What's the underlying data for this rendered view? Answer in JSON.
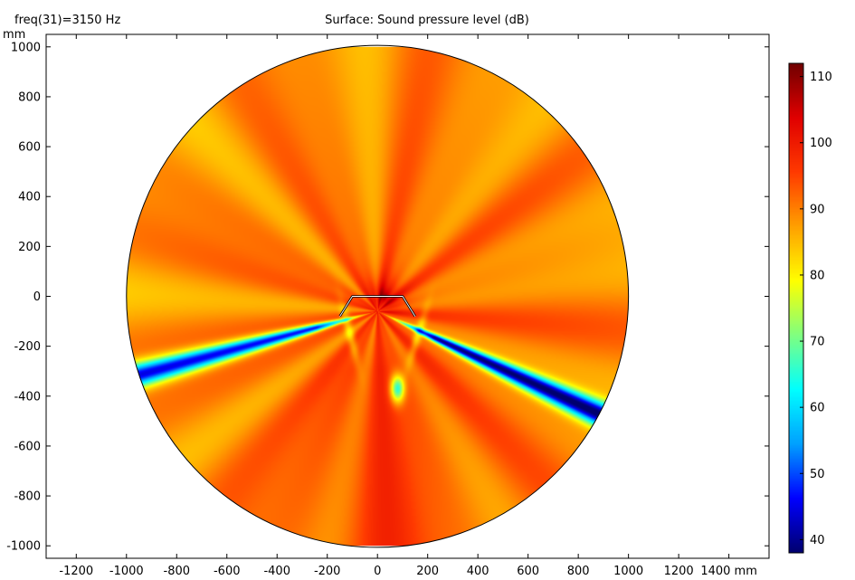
{
  "chart_data": {
    "type": "heatmap",
    "title": "Surface: Sound pressure level (dB)",
    "subtitle": "freq(31)=3150 Hz",
    "xlabel": "mm",
    "ylabel": "mm",
    "xlim": [
      -1320,
      1560
    ],
    "ylim": [
      -1050,
      1050
    ],
    "x_ticks": [
      -1200,
      -1000,
      -800,
      -600,
      -400,
      -200,
      0,
      200,
      400,
      600,
      800,
      1000,
      1200,
      1400
    ],
    "x_tick_labels": [
      "-1200",
      "-1000",
      "-800",
      "-600",
      "-400",
      "-200",
      "0",
      "200",
      "400",
      "600",
      "800",
      "1000",
      "1200",
      "1400 mm"
    ],
    "y_ticks": [
      -1000,
      -800,
      -600,
      -400,
      -200,
      0,
      200,
      400,
      600,
      800,
      1000
    ],
    "y_tick_labels": [
      "-1000",
      "-800",
      "-600",
      "-400",
      "-200",
      "0",
      "200",
      "400",
      "600",
      "800",
      "1000"
    ],
    "domain": {
      "shape": "circle",
      "center": [
        0,
        0
      ],
      "radius": 1000
    },
    "colorbar": {
      "min": 38,
      "max": 112,
      "ticks": [
        40,
        50,
        60,
        70,
        80,
        90,
        100,
        110
      ],
      "colormap": [
        "#00006e",
        "#0000ff",
        "#00a0ff",
        "#00ffff",
        "#80ff80",
        "#ffff00",
        "#ffa000",
        "#ff3a00",
        "#e00000",
        "#700000"
      ]
    },
    "structure": [
      [
        -150,
        -80
      ],
      [
        -100,
        0
      ],
      [
        100,
        0
      ],
      [
        150,
        -80
      ]
    ],
    "features": {
      "source_location": [
        30,
        0
      ],
      "peak_level_db": 111,
      "background_level_db": 91,
      "min_level_db": 39,
      "low_bands": [
        {
          "side": "left",
          "angle_deg": 195,
          "level_db": 45
        },
        {
          "side": "right",
          "angle_deg": 335,
          "level_db": 40
        }
      ],
      "local_min_spot": {
        "center": [
          80,
          -370
        ],
        "level_db": 68
      }
    }
  }
}
